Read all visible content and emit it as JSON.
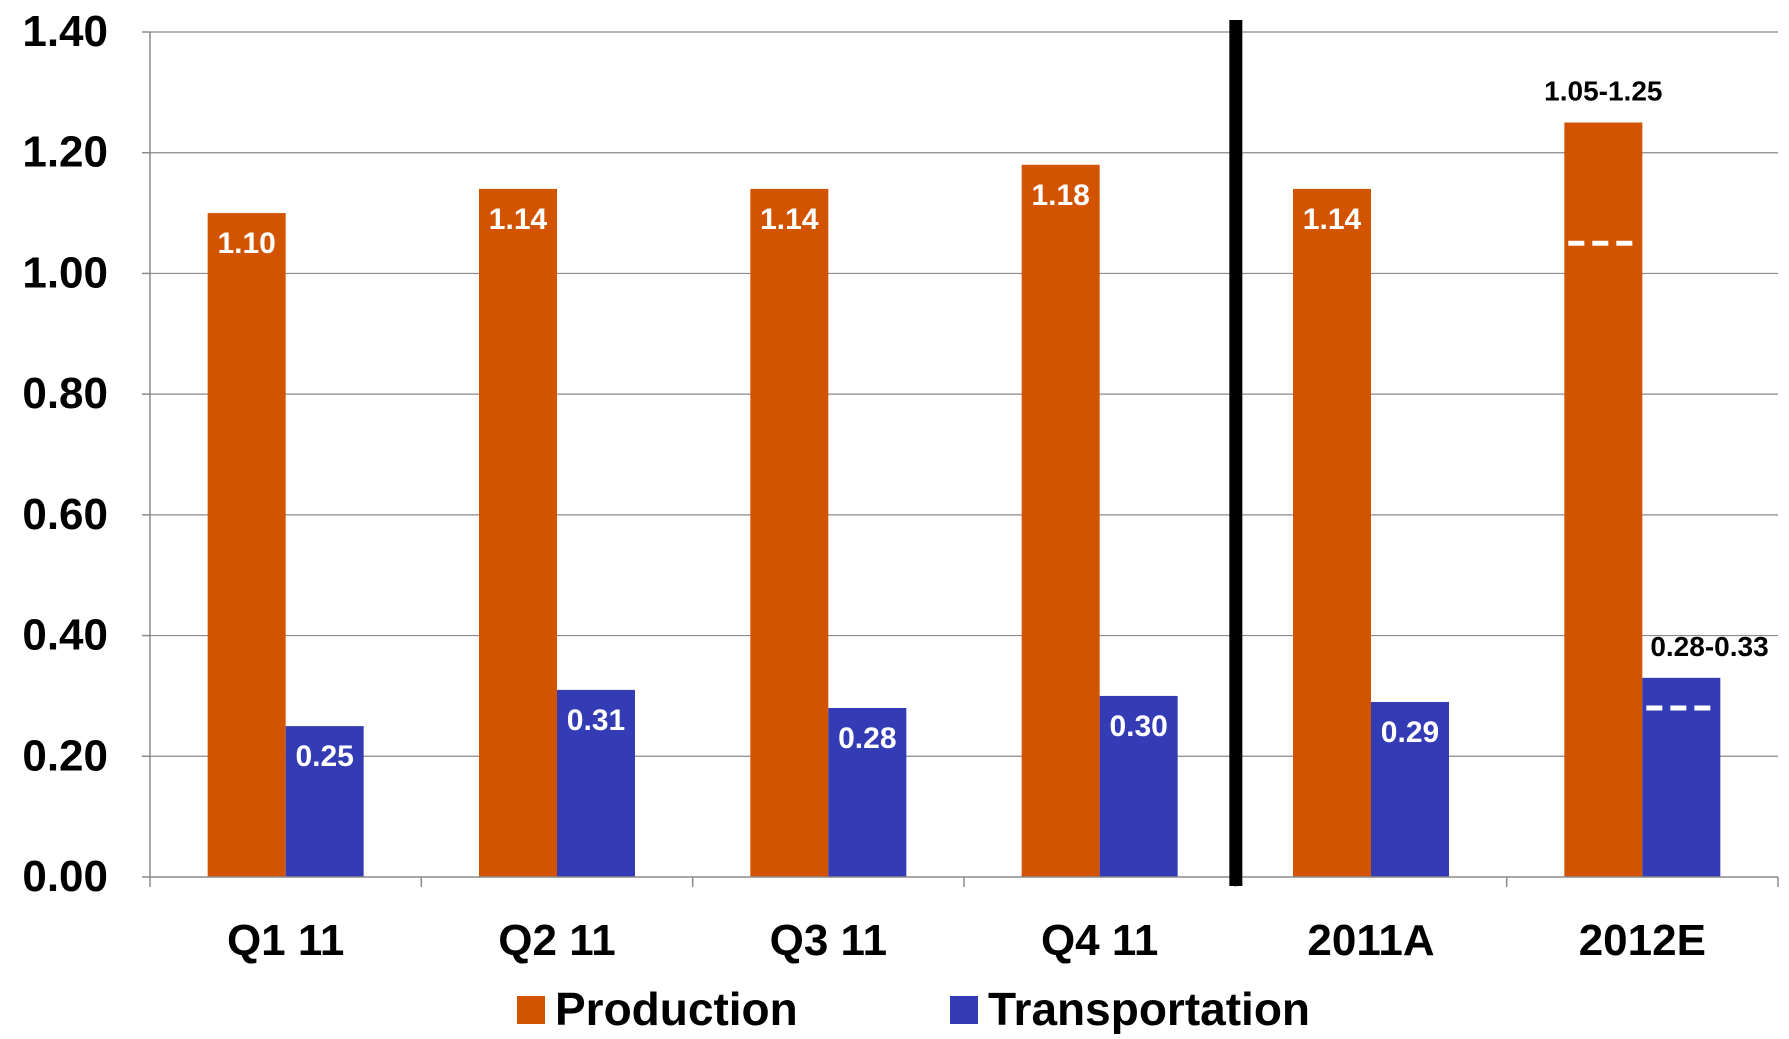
{
  "chart_data": {
    "type": "bar",
    "categories": [
      "Q1 11",
      "Q2 11",
      "Q3 11",
      "Q4 11",
      "2011A",
      "2012E"
    ],
    "series": [
      {
        "name": "Production",
        "color": "#D35400",
        "values": [
          1.1,
          1.14,
          1.14,
          1.18,
          1.14,
          1.25
        ],
        "labels": [
          "1.10",
          "1.14",
          "1.14",
          "1.18",
          "1.14",
          ""
        ]
      },
      {
        "name": "Transportation",
        "color": "#333BB5",
        "values": [
          0.25,
          0.31,
          0.28,
          0.3,
          0.29,
          0.33
        ],
        "labels": [
          "0.25",
          "0.31",
          "0.28",
          "0.30",
          "0.29",
          ""
        ]
      }
    ],
    "ranges": [
      {
        "series": "Production",
        "category": "2012E",
        "low": 1.05,
        "high": 1.25,
        "label": "1.05-1.25"
      },
      {
        "series": "Transportation",
        "category": "2012E",
        "low": 0.28,
        "high": 0.33,
        "label": "0.28-0.33"
      }
    ],
    "y_ticks": [
      "0.00",
      "0.20",
      "0.40",
      "0.60",
      "0.80",
      "1.00",
      "1.20",
      "1.40"
    ],
    "ylim": [
      0,
      1.4
    ],
    "title": "",
    "xlabel": "",
    "ylabel": "",
    "grid": true,
    "legend_position": "bottom",
    "separator_after_category": "Q4 11"
  }
}
